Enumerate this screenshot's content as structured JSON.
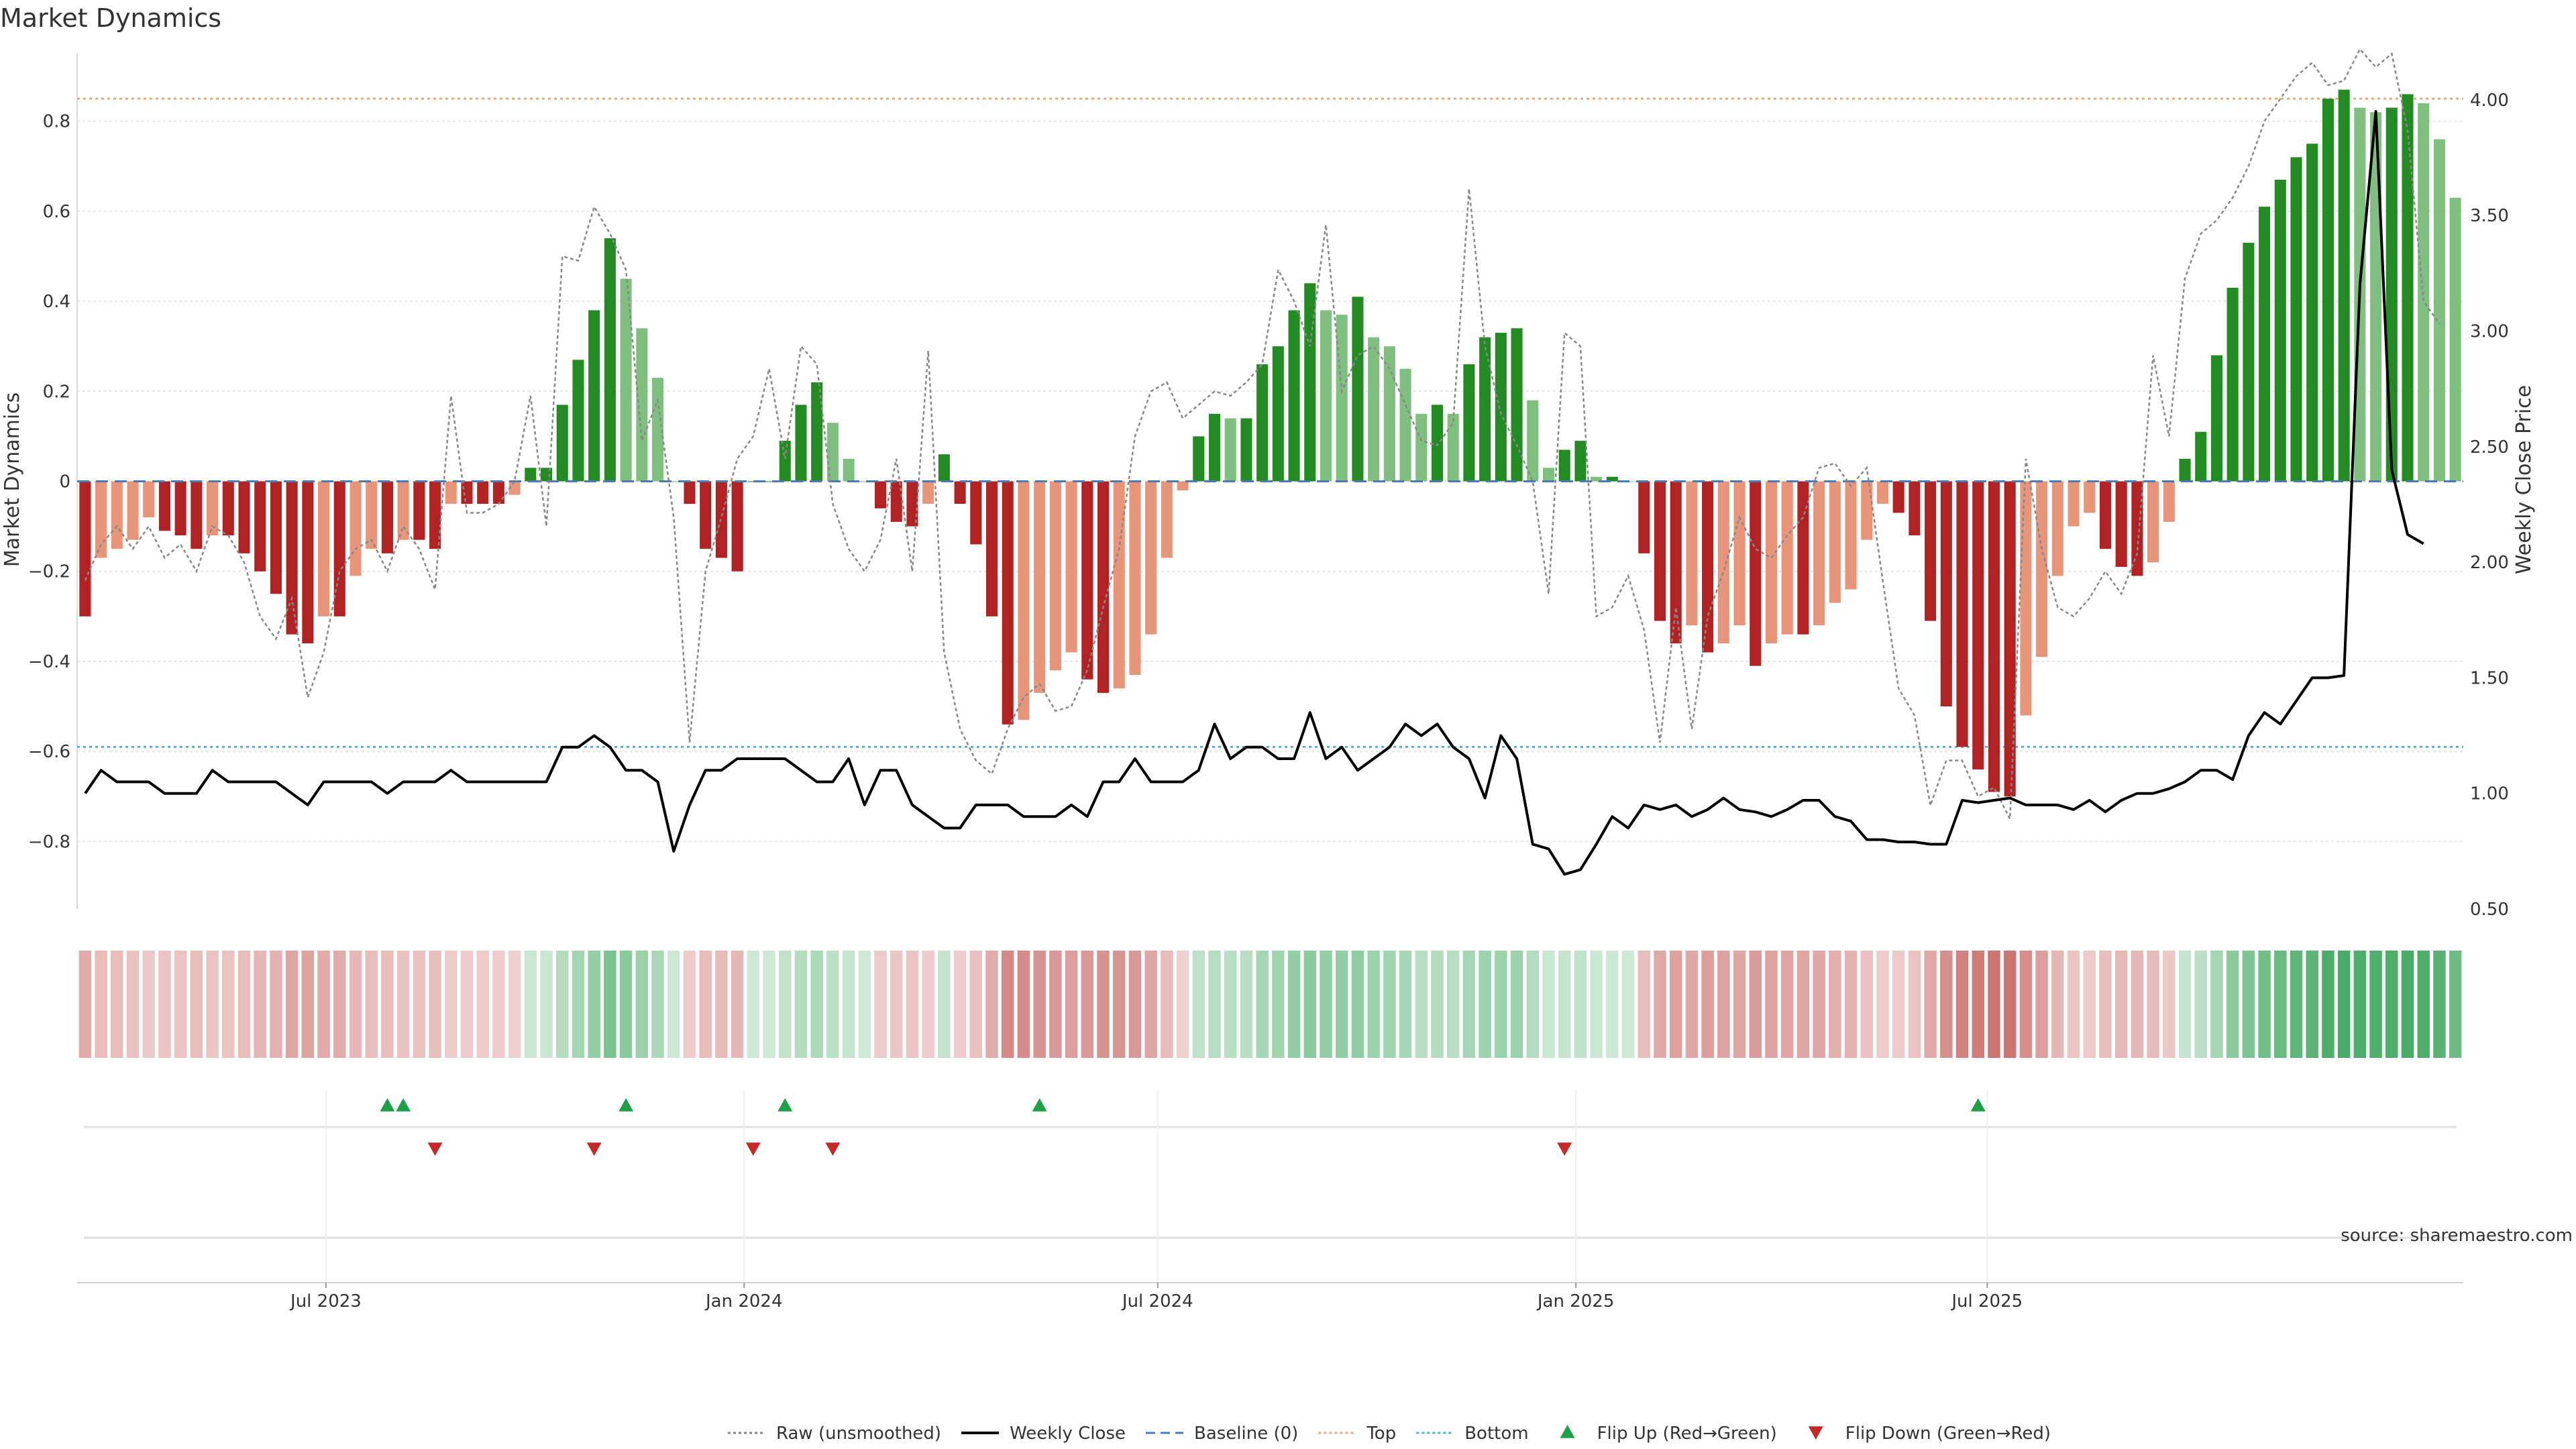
{
  "chart_data": {
    "type": "bar",
    "title": "Market Dynamics",
    "ylabel_left": "Market Dynamics",
    "ylabel_right": "Weekly Close Price",
    "ylim_left": [
      -0.95,
      0.95
    ],
    "ylim_right": [
      0.5,
      4.2
    ],
    "yticks_left": [
      0.8,
      0.6,
      0.4,
      0.2,
      0,
      -0.2,
      -0.4,
      -0.6,
      -0.8
    ],
    "yticks_left_labels": [
      "0.8",
      "0.6",
      "0.4",
      "0.2",
      "0",
      "−0.2",
      "−0.4",
      "−0.6",
      "−0.8"
    ],
    "yticks_right": [
      4.0,
      3.5,
      3.0,
      2.5,
      2.0,
      1.5,
      1.0,
      0.5
    ],
    "yticks_right_labels": [
      "4.00",
      "3.50",
      "3.00",
      "2.50",
      "2.00",
      "1.50",
      "1.00",
      "0.50"
    ],
    "x_start": "2023-03-17",
    "week_step_days": 7,
    "x_ticks": [
      {
        "date": "2023-07-01",
        "label": "Jul 2023"
      },
      {
        "date": "2024-01-01",
        "label": "Jan 2024"
      },
      {
        "date": "2024-07-01",
        "label": "Jul 2024"
      },
      {
        "date": "2025-01-01",
        "label": "Jan 2025"
      },
      {
        "date": "2025-07-01",
        "label": "Jul 2025"
      }
    ],
    "top_threshold": 0.85,
    "bottom_threshold": -0.59,
    "baseline": 0,
    "smoothed": [
      -0.3,
      -0.17,
      -0.15,
      -0.13,
      -0.08,
      -0.11,
      -0.12,
      -0.15,
      -0.12,
      -0.12,
      -0.16,
      -0.2,
      -0.25,
      -0.34,
      -0.36,
      -0.3,
      -0.3,
      -0.21,
      -0.15,
      -0.16,
      -0.13,
      -0.13,
      -0.15,
      -0.05,
      -0.05,
      -0.05,
      -0.05,
      -0.03,
      0.03,
      0.03,
      0.17,
      0.27,
      0.38,
      0.54,
      0.45,
      0.34,
      0.23,
      0.0,
      -0.05,
      -0.15,
      -0.17,
      -0.2,
      0.0,
      0.0,
      0.09,
      0.17,
      0.22,
      0.13,
      0.05,
      0.0,
      -0.06,
      -0.09,
      -0.1,
      -0.05,
      0.06,
      -0.05,
      -0.14,
      -0.3,
      -0.54,
      -0.53,
      -0.47,
      -0.42,
      -0.38,
      -0.44,
      -0.47,
      -0.46,
      -0.43,
      -0.34,
      -0.17,
      -0.02,
      0.1,
      0.15,
      0.14,
      0.14,
      0.26,
      0.3,
      0.38,
      0.44,
      0.38,
      0.37,
      0.41,
      0.32,
      0.3,
      0.25,
      0.15,
      0.17,
      0.15,
      0.26,
      0.32,
      0.33,
      0.34,
      0.18,
      0.03,
      0.07,
      0.09,
      0.01,
      0.01,
      0.0,
      -0.16,
      -0.31,
      -0.36,
      -0.32,
      -0.38,
      -0.36,
      -0.32,
      -0.41,
      -0.36,
      -0.34,
      -0.34,
      -0.32,
      -0.27,
      -0.24,
      -0.13,
      -0.05,
      -0.07,
      -0.12,
      -0.31,
      -0.5,
      -0.59,
      -0.64,
      -0.69,
      -0.7,
      -0.52,
      -0.39,
      -0.21,
      -0.1,
      -0.07,
      -0.15,
      -0.19,
      -0.21,
      -0.18,
      -0.09,
      0.05,
      0.11,
      0.28,
      0.43,
      0.53,
      0.61,
      0.67,
      0.72,
      0.75,
      0.85,
      0.87,
      0.83,
      0.82,
      0.83,
      0.86,
      0.84,
      0.76,
      0.63
    ],
    "raw": [
      -0.22,
      -0.14,
      -0.1,
      -0.15,
      -0.1,
      -0.17,
      -0.14,
      -0.2,
      -0.1,
      -0.12,
      -0.18,
      -0.3,
      -0.35,
      -0.26,
      -0.48,
      -0.38,
      -0.2,
      -0.15,
      -0.13,
      -0.2,
      -0.1,
      -0.15,
      -0.24,
      0.19,
      -0.07,
      -0.07,
      -0.05,
      0.0,
      0.19,
      -0.1,
      0.5,
      0.49,
      0.61,
      0.55,
      0.47,
      0.09,
      0.18,
      -0.08,
      -0.58,
      -0.2,
      -0.08,
      0.05,
      0.1,
      0.25,
      0.05,
      0.3,
      0.26,
      -0.05,
      -0.15,
      -0.2,
      -0.13,
      0.05,
      -0.2,
      0.29,
      -0.38,
      -0.55,
      -0.62,
      -0.65,
      -0.55,
      -0.48,
      -0.45,
      -0.51,
      -0.5,
      -0.42,
      -0.28,
      -0.15,
      0.1,
      0.2,
      0.22,
      0.14,
      0.17,
      0.2,
      0.19,
      0.22,
      0.26,
      0.47,
      0.4,
      0.3,
      0.57,
      0.2,
      0.28,
      0.3,
      0.25,
      0.17,
      0.09,
      0.08,
      0.13,
      0.65,
      0.3,
      0.15,
      0.08,
      0.0,
      -0.25,
      0.33,
      0.3,
      -0.3,
      -0.28,
      -0.21,
      -0.33,
      -0.58,
      -0.28,
      -0.55,
      -0.3,
      -0.2,
      -0.08,
      -0.15,
      -0.17,
      -0.12,
      -0.08,
      0.03,
      0.04,
      -0.01,
      0.03,
      -0.22,
      -0.46,
      -0.52,
      -0.72,
      -0.62,
      -0.62,
      -0.7,
      -0.68,
      -0.75,
      0.05,
      -0.15,
      -0.28,
      -0.3,
      -0.26,
      -0.2,
      -0.25,
      -0.16,
      0.28,
      0.1,
      0.45,
      0.55,
      0.58,
      0.63,
      0.7,
      0.8,
      0.85,
      0.9,
      0.93,
      0.88,
      0.89,
      0.96,
      0.92,
      0.95,
      0.78,
      0.4,
      0.35
    ],
    "weekly_close": [
      1.0,
      1.1,
      1.05,
      1.05,
      1.05,
      1.0,
      1.0,
      1.0,
      1.1,
      1.05,
      1.05,
      1.05,
      1.05,
      1.0,
      0.95,
      1.05,
      1.05,
      1.05,
      1.05,
      1.0,
      1.05,
      1.05,
      1.05,
      1.1,
      1.05,
      1.05,
      1.05,
      1.05,
      1.05,
      1.05,
      1.2,
      1.2,
      1.25,
      1.2,
      1.1,
      1.1,
      1.05,
      0.75,
      0.95,
      1.1,
      1.1,
      1.15,
      1.15,
      1.15,
      1.15,
      1.1,
      1.05,
      1.05,
      1.15,
      0.95,
      1.1,
      1.1,
      0.95,
      0.9,
      0.85,
      0.85,
      0.95,
      0.95,
      0.95,
      0.9,
      0.9,
      0.9,
      0.95,
      0.9,
      1.05,
      1.05,
      1.15,
      1.05,
      1.05,
      1.05,
      1.1,
      1.3,
      1.15,
      1.2,
      1.2,
      1.15,
      1.15,
      1.35,
      1.15,
      1.2,
      1.1,
      1.15,
      1.2,
      1.3,
      1.25,
      1.3,
      1.2,
      1.15,
      0.98,
      1.25,
      1.15,
      0.78,
      0.76,
      0.65,
      0.67,
      0.78,
      0.9,
      0.85,
      0.95,
      0.93,
      0.95,
      0.9,
      0.93,
      0.98,
      0.93,
      0.92,
      0.9,
      0.93,
      0.97,
      0.97,
      0.9,
      0.88,
      0.8,
      0.8,
      0.79,
      0.79,
      0.78,
      0.78,
      0.97,
      0.96,
      0.97,
      0.98,
      0.95,
      0.95,
      0.95,
      0.93,
      0.97,
      0.92,
      0.97,
      1.0,
      1.0,
      1.02,
      1.05,
      1.1,
      1.1,
      1.06,
      1.25,
      1.35,
      1.3,
      1.4,
      1.5,
      1.5,
      1.51,
      3.2,
      3.95,
      2.4,
      2.12,
      2.08
    ],
    "flip_up_weeks": [
      19,
      20,
      34,
      44,
      60,
      119
    ],
    "flip_down_weeks": [
      22,
      32,
      42,
      47,
      93
    ],
    "source": "source: sharemaestro.com",
    "legend": [
      {
        "label": "Raw (unsmoothed)",
        "style": "dotted",
        "color": "#888888"
      },
      {
        "label": "Weekly Close",
        "style": "solid",
        "color": "#000000"
      },
      {
        "label": "Baseline (0)",
        "style": "dashed",
        "color": "#4a7bb5"
      },
      {
        "label": "Top",
        "style": "dotted",
        "color": "#e8a878"
      },
      {
        "label": "Bottom",
        "style": "dotted",
        "color": "#4fb0d0"
      },
      {
        "label": "Flip Up (Red→Green)",
        "style": "triangle-up",
        "color": "#1f9f4a"
      },
      {
        "label": "Flip Down (Green→Red)",
        "style": "triangle-down",
        "color": "#c62828"
      }
    ],
    "colors": {
      "strong_green": "#228B22",
      "light_green": "#7fbf7f",
      "strong_red": "#b22222",
      "light_red": "#e8957a",
      "top_line": "#e8a878",
      "bottom_line": "#4fb0d0",
      "baseline": "#4a7bb5",
      "raw_line": "#888888",
      "close_line": "#000000",
      "grid": "#e6e6e6"
    }
  }
}
